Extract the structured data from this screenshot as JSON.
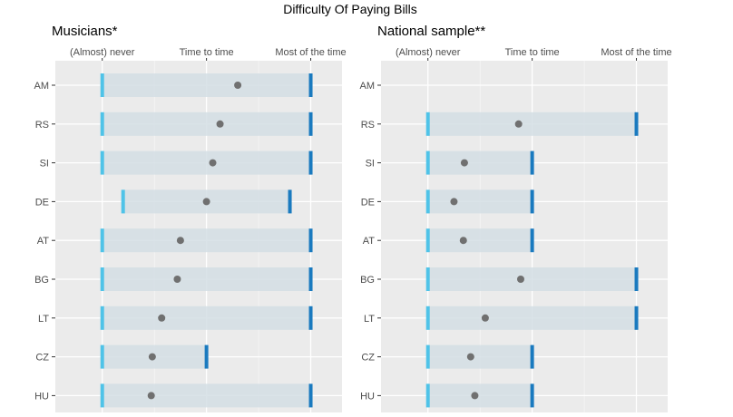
{
  "main_title": "Difficulty Of Paying Bills",
  "colors": {
    "panel_bg": "#EBEBEB",
    "grid": "#FFFFFF",
    "bar_fill": "#D4DEE4",
    "min_marker": "#4FC3E8",
    "max_marker": "#1A7ABF",
    "point": "#707070",
    "text": "#4D4D4D",
    "title_text": "#000000"
  },
  "chart_data": [
    {
      "type": "range-dot",
      "title": "Musicians*",
      "x_tick_labels": [
        "(Almost) never",
        "Time to time",
        "Most of the time"
      ],
      "x_ticks": [
        1,
        2,
        3
      ],
      "xlim": [
        0.55,
        3.3
      ],
      "categories": [
        "AM",
        "RS",
        "SI",
        "DE",
        "AT",
        "BG",
        "LT",
        "CZ",
        "HU"
      ],
      "rows": [
        {
          "category": "AM",
          "min": 1.0,
          "max": 3.0,
          "mean": 2.3
        },
        {
          "category": "RS",
          "min": 1.0,
          "max": 3.0,
          "mean": 2.13
        },
        {
          "category": "SI",
          "min": 1.0,
          "max": 3.0,
          "mean": 2.06
        },
        {
          "category": "DE",
          "min": 1.2,
          "max": 2.8,
          "mean": 2.0
        },
        {
          "category": "AT",
          "min": 1.0,
          "max": 3.0,
          "mean": 1.75
        },
        {
          "category": "BG",
          "min": 1.0,
          "max": 3.0,
          "mean": 1.72
        },
        {
          "category": "LT",
          "min": 1.0,
          "max": 3.0,
          "mean": 1.57
        },
        {
          "category": "CZ",
          "min": 1.0,
          "max": 2.0,
          "mean": 1.48
        },
        {
          "category": "HU",
          "min": 1.0,
          "max": 3.0,
          "mean": 1.47
        }
      ]
    },
    {
      "type": "range-dot",
      "title": "National sample**",
      "x_tick_labels": [
        "(Almost) never",
        "Time to time",
        "Most of the time"
      ],
      "x_ticks": [
        1,
        2,
        3
      ],
      "xlim": [
        0.55,
        3.3
      ],
      "categories": [
        "AM",
        "RS",
        "SI",
        "DE",
        "AT",
        "BG",
        "LT",
        "CZ",
        "HU"
      ],
      "rows": [
        {
          "category": "AM",
          "min": null,
          "max": null,
          "mean": null
        },
        {
          "category": "RS",
          "min": 1.0,
          "max": 3.0,
          "mean": 1.87
        },
        {
          "category": "SI",
          "min": 1.0,
          "max": 2.0,
          "mean": 1.35
        },
        {
          "category": "DE",
          "min": 1.0,
          "max": 2.0,
          "mean": 1.25
        },
        {
          "category": "AT",
          "min": 1.0,
          "max": 2.0,
          "mean": 1.34
        },
        {
          "category": "BG",
          "min": 1.0,
          "max": 3.0,
          "mean": 1.89
        },
        {
          "category": "LT",
          "min": 1.0,
          "max": 3.0,
          "mean": 1.55
        },
        {
          "category": "CZ",
          "min": 1.0,
          "max": 2.0,
          "mean": 1.41
        },
        {
          "category": "HU",
          "min": 1.0,
          "max": 2.0,
          "mean": 1.45
        }
      ]
    }
  ]
}
